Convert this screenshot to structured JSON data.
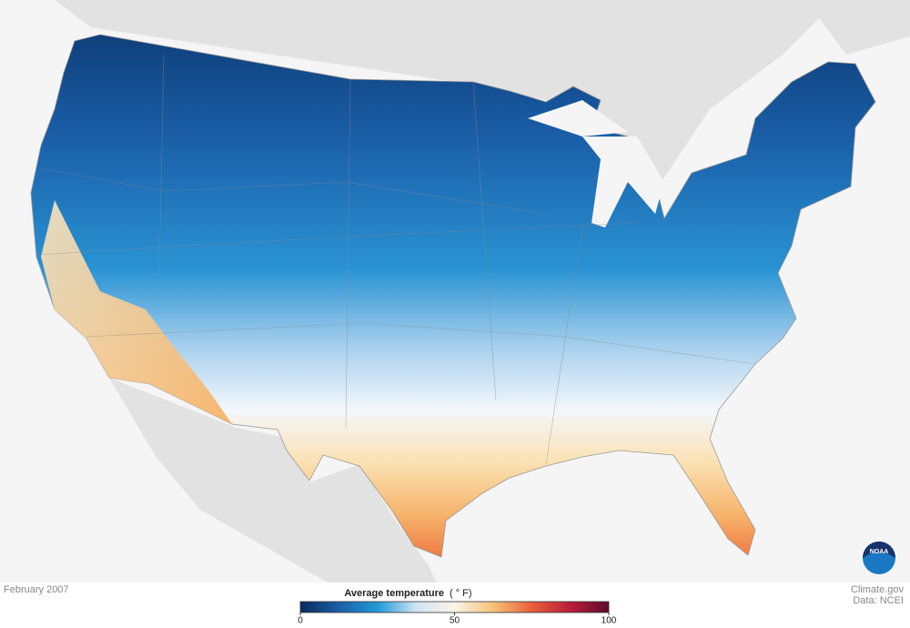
{
  "map": {
    "caption": "February 2007"
  },
  "legend": {
    "title": "Average temperature",
    "unit": "( ° F)",
    "lim": [
      0,
      100
    ],
    "ticks": [
      0,
      50,
      100
    ],
    "colors": [
      "#0b2a5c",
      "#1a5fa8",
      "#1f9ad6",
      "#cfe4f3",
      "#fbf4e6",
      "#f7c27a",
      "#e8603c",
      "#b81d3a",
      "#5e0b2c"
    ]
  },
  "credit": {
    "site": "Climate.gov",
    "source": "Data: NCEI"
  },
  "logo": {
    "text": "NOAA"
  }
}
